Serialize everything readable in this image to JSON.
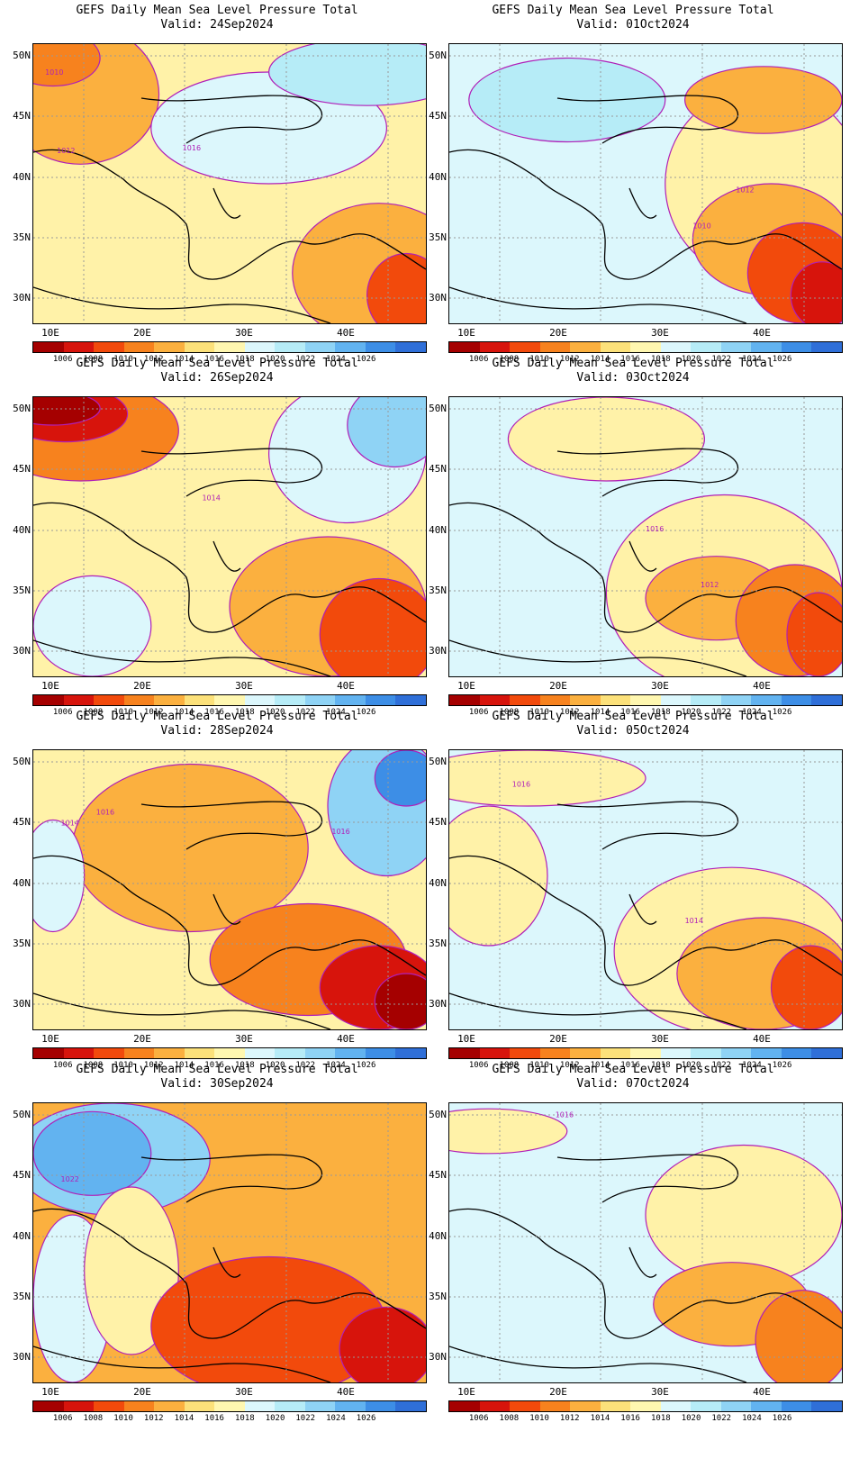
{
  "product": "GEFS Daily Mean Sea Level Pressure Total",
  "lat_labels": [
    "50N",
    "45N",
    "40N",
    "35N",
    "30N"
  ],
  "lon_labels": [
    "10E",
    "20E",
    "30E",
    "40E"
  ],
  "colorbar": {
    "labels": [
      "1006",
      "1008",
      "1010",
      "1012",
      "1014",
      "1016",
      "1018",
      "1020",
      "1022",
      "1024",
      "1026"
    ],
    "colors": [
      "#a50000",
      "#d7140c",
      "#f24a0c",
      "#f7821e",
      "#fbb03f",
      "#fce17a",
      "#fff7b0",
      "#dcf7fc",
      "#b6ecf7",
      "#8fd3f5",
      "#62b3f0",
      "#3d8ee6",
      "#2f6fd8"
    ]
  },
  "panels": [
    {
      "valid": "Valid: 24Sep2024",
      "bg": "#fff2a8",
      "blobs": [
        [
          "#fbb03f",
          0.12,
          0.18,
          0.2,
          0.25
        ],
        [
          "#f7821e",
          0.05,
          0.05,
          0.12,
          0.1
        ],
        [
          "#dcf7fc",
          0.6,
          0.3,
          0.3,
          0.2
        ],
        [
          "#b6ecf7",
          0.85,
          0.1,
          0.25,
          0.12
        ],
        [
          "#fbb03f",
          0.88,
          0.82,
          0.22,
          0.25
        ],
        [
          "#f24a0c",
          0.95,
          0.9,
          0.1,
          0.15
        ]
      ],
      "contours": [
        [
          "1010",
          0.03,
          0.11
        ],
        [
          "1012",
          0.06,
          0.39
        ],
        [
          "1016",
          0.38,
          0.38
        ]
      ]
    },
    {
      "valid": "Valid: 01Oct2024",
      "bg": "#dcf7fc",
      "blobs": [
        [
          "#b6ecf7",
          0.3,
          0.2,
          0.25,
          0.15
        ],
        [
          "#fff2a8",
          0.8,
          0.5,
          0.25,
          0.35
        ],
        [
          "#fbb03f",
          0.82,
          0.7,
          0.2,
          0.2
        ],
        [
          "#f24a0c",
          0.9,
          0.82,
          0.14,
          0.18
        ],
        [
          "#d7140c",
          0.95,
          0.9,
          0.08,
          0.12
        ],
        [
          "#fbb03f",
          0.8,
          0.2,
          0.2,
          0.12
        ]
      ],
      "contours": [
        [
          "1012",
          0.73,
          0.53
        ],
        [
          "1010",
          0.62,
          0.66
        ]
      ]
    },
    {
      "valid": "Valid: 26Sep2024",
      "bg": "#fff2a8",
      "blobs": [
        [
          "#f7821e",
          0.12,
          0.12,
          0.25,
          0.18
        ],
        [
          "#d7140c",
          0.08,
          0.06,
          0.16,
          0.1
        ],
        [
          "#a50000",
          0.05,
          0.04,
          0.12,
          0.06
        ],
        [
          "#dcf7fc",
          0.15,
          0.82,
          0.15,
          0.18
        ],
        [
          "#dcf7fc",
          0.8,
          0.2,
          0.2,
          0.25
        ],
        [
          "#8fd3f5",
          0.92,
          0.1,
          0.12,
          0.15
        ],
        [
          "#fbb03f",
          0.75,
          0.75,
          0.25,
          0.25
        ],
        [
          "#f24a0c",
          0.88,
          0.85,
          0.15,
          0.2
        ]
      ],
      "contours": [
        [
          "1014",
          0.43,
          0.37
        ]
      ]
    },
    {
      "valid": "Valid: 03Oct2024",
      "bg": "#dcf7fc",
      "blobs": [
        [
          "#fff2a8",
          0.4,
          0.15,
          0.25,
          0.15
        ],
        [
          "#fff2a8",
          0.7,
          0.7,
          0.3,
          0.35
        ],
        [
          "#fbb03f",
          0.68,
          0.72,
          0.18,
          0.15
        ],
        [
          "#f7821e",
          0.88,
          0.8,
          0.15,
          0.2
        ],
        [
          "#f24a0c",
          0.94,
          0.85,
          0.08,
          0.15
        ]
      ],
      "contours": [
        [
          "1016",
          0.5,
          0.48
        ],
        [
          "1012",
          0.64,
          0.68
        ]
      ]
    },
    {
      "valid": "Valid: 28Sep2024",
      "bg": "#fff2a8",
      "blobs": [
        [
          "#fbb03f",
          0.4,
          0.35,
          0.3,
          0.3
        ],
        [
          "#dcf7fc",
          0.05,
          0.45,
          0.08,
          0.2
        ],
        [
          "#8fd3f5",
          0.9,
          0.2,
          0.15,
          0.25
        ],
        [
          "#3d8ee6",
          0.95,
          0.1,
          0.08,
          0.1
        ],
        [
          "#f7821e",
          0.7,
          0.75,
          0.25,
          0.2
        ],
        [
          "#d7140c",
          0.88,
          0.85,
          0.15,
          0.15
        ],
        [
          "#a50000",
          0.95,
          0.9,
          0.08,
          0.1
        ]
      ],
      "contours": [
        [
          "1014",
          0.07,
          0.27
        ],
        [
          "1016",
          0.16,
          0.23
        ],
        [
          "1016",
          0.76,
          0.3
        ]
      ]
    },
    {
      "valid": "Valid: 05Oct2024",
      "bg": "#dcf7fc",
      "blobs": [
        [
          "#fff2a8",
          0.2,
          0.1,
          0.3,
          0.1
        ],
        [
          "#fff2a8",
          0.1,
          0.45,
          0.15,
          0.25
        ],
        [
          "#fff2a8",
          0.72,
          0.72,
          0.3,
          0.3
        ],
        [
          "#fbb03f",
          0.8,
          0.8,
          0.22,
          0.2
        ],
        [
          "#f24a0c",
          0.92,
          0.85,
          0.1,
          0.15
        ]
      ],
      "contours": [
        [
          "1016",
          0.16,
          0.13
        ],
        [
          "1014",
          0.6,
          0.62
        ]
      ]
    },
    {
      "valid": "Valid: 30Sep2024",
      "bg": "#fbb03f",
      "blobs": [
        [
          "#8fd3f5",
          0.2,
          0.2,
          0.25,
          0.2
        ],
        [
          "#62b3f0",
          0.15,
          0.18,
          0.15,
          0.15
        ],
        [
          "#dcf7fc",
          0.1,
          0.7,
          0.1,
          0.3
        ],
        [
          "#fff2a8",
          0.25,
          0.6,
          0.12,
          0.3
        ],
        [
          "#f24a0c",
          0.6,
          0.8,
          0.3,
          0.25
        ],
        [
          "#d7140c",
          0.9,
          0.88,
          0.12,
          0.15
        ]
      ],
      "contours": [
        [
          "1022",
          0.07,
          0.28
        ]
      ]
    },
    {
      "valid": "Valid: 07Oct2024",
      "bg": "#dcf7fc",
      "blobs": [
        [
          "#fff2a8",
          0.75,
          0.4,
          0.25,
          0.25
        ],
        [
          "#fff2a8",
          0.1,
          0.1,
          0.2,
          0.08
        ],
        [
          "#fbb03f",
          0.72,
          0.72,
          0.2,
          0.15
        ],
        [
          "#f7821e",
          0.9,
          0.85,
          0.12,
          0.18
        ]
      ],
      "contours": [
        [
          "1016",
          0.27,
          0.05
        ]
      ]
    }
  ]
}
